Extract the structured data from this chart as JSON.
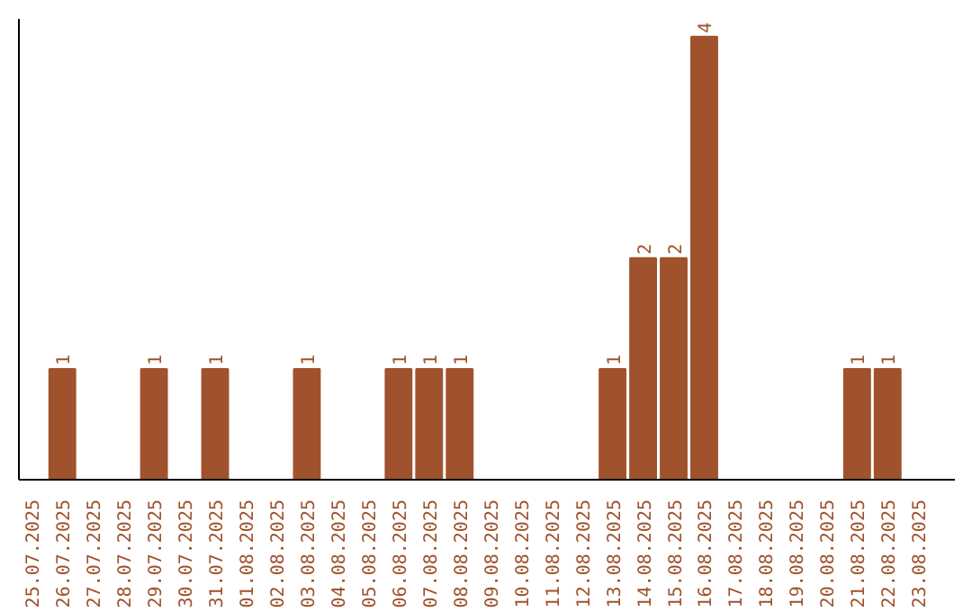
{
  "chart_data": {
    "type": "bar",
    "categories": [
      "25.07.2025",
      "26.07.2025",
      "27.07.2025",
      "28.07.2025",
      "29.07.2025",
      "30.07.2025",
      "31.07.2025",
      "01.08.2025",
      "02.08.2025",
      "03.08.2025",
      "04.08.2025",
      "05.08.2025",
      "06.08.2025",
      "07.08.2025",
      "08.08.2025",
      "09.08.2025",
      "10.08.2025",
      "11.08.2025",
      "12.08.2025",
      "13.08.2025",
      "14.08.2025",
      "15.08.2025",
      "16.08.2025",
      "17.08.2025",
      "18.08.2025",
      "19.08.2025",
      "20.08.2025",
      "21.08.2025",
      "22.08.2025",
      "23.08.2025"
    ],
    "values": [
      0,
      1,
      0,
      0,
      1,
      0,
      1,
      0,
      0,
      1,
      0,
      0,
      1,
      1,
      1,
      0,
      0,
      0,
      0,
      1,
      2,
      2,
      4,
      0,
      0,
      0,
      0,
      1,
      1,
      0
    ],
    "value_labels": [
      null,
      "1",
      null,
      null,
      "1",
      null,
      "1",
      null,
      null,
      "1",
      null,
      null,
      "1",
      "1",
      "1",
      null,
      null,
      null,
      null,
      "1",
      "2",
      "2",
      "4",
      null,
      null,
      null,
      null,
      "1",
      "1",
      null
    ],
    "color": "#a0522d"
  }
}
